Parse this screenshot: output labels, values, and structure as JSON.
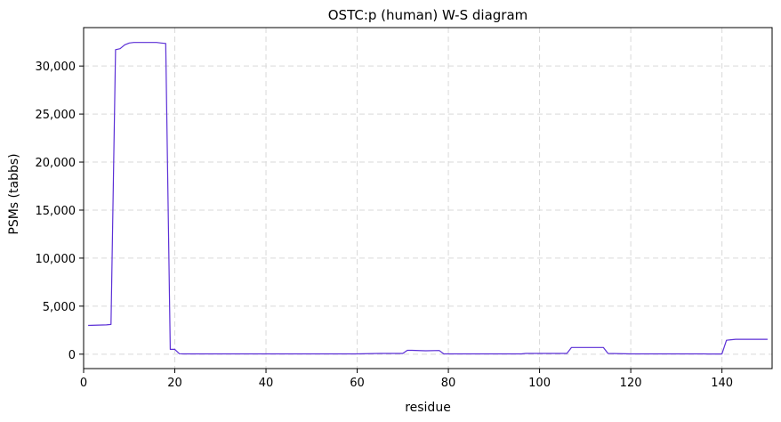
{
  "chart_data": {
    "type": "line",
    "title": "OSTC:p (human) W-S diagram",
    "xlabel": "residue",
    "ylabel": "PSMs (tabbs)",
    "xlim": [
      0,
      151
    ],
    "ylim": [
      -1500,
      34000
    ],
    "x_ticks": [
      0,
      20,
      40,
      60,
      80,
      100,
      120,
      140
    ],
    "y_ticks": [
      0,
      5000,
      10000,
      15000,
      20000,
      25000,
      30000
    ],
    "y_tick_labels": [
      "0",
      "5,000",
      "10,000",
      "15,000",
      "20,000",
      "25,000",
      "30,000"
    ],
    "grid": true,
    "line_color": "#5b2fd6",
    "series": [
      {
        "x": [
          1,
          5,
          6,
          7,
          8,
          9,
          10,
          11,
          12,
          13,
          14,
          15,
          16,
          17,
          18,
          19,
          20,
          21,
          22,
          30,
          40,
          50,
          60,
          65,
          70,
          71,
          72,
          75,
          78,
          79,
          80,
          85,
          90,
          96,
          97,
          100,
          105,
          106,
          107,
          110,
          114,
          115,
          120,
          130,
          136,
          137,
          140,
          141,
          142,
          143,
          145,
          150
        ],
        "y": [
          3000,
          3050,
          3100,
          31700,
          31800,
          32200,
          32400,
          32450,
          32450,
          32450,
          32450,
          32450,
          32450,
          32400,
          32350,
          500,
          500,
          50,
          30,
          30,
          30,
          30,
          30,
          80,
          80,
          400,
          400,
          350,
          380,
          30,
          30,
          30,
          30,
          30,
          80,
          80,
          80,
          80,
          700,
          700,
          700,
          80,
          30,
          30,
          30,
          20,
          20,
          1450,
          1500,
          1550,
          1550,
          1550
        ]
      }
    ]
  }
}
